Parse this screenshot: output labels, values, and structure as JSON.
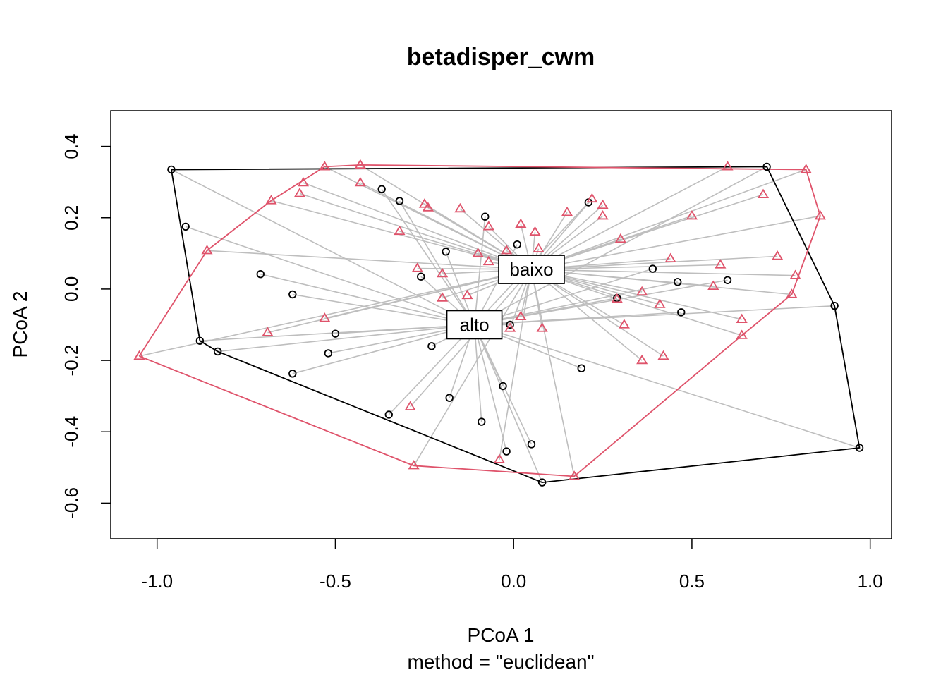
{
  "chart_data": {
    "type": "scatter",
    "title": "betadisper_cwm",
    "xlabel": "PCoA 1",
    "ylabel": "PCoA 2",
    "subtitle": "method = \"euclidean\"",
    "xlim": [
      -1.13,
      1.06
    ],
    "ylim": [
      -0.7,
      0.5
    ],
    "xticks": [
      -1.0,
      -0.5,
      0.0,
      0.5,
      1.0
    ],
    "yticks": [
      -0.6,
      -0.4,
      -0.2,
      0.0,
      0.2,
      0.4
    ],
    "xtick_labels": [
      "-1.0",
      "-0.5",
      "0.0",
      "0.5",
      "1.0"
    ],
    "ytick_labels": [
      "-0.6",
      "-0.4",
      "-0.2",
      "0.0",
      "0.2",
      "0.4"
    ],
    "grid": false,
    "colors": {
      "alto": "#000000",
      "baixo": "#DF536B",
      "segments": "#BEBEBE"
    },
    "series": [
      {
        "name": "alto",
        "marker": "circle",
        "centroid": [
          -0.11,
          -0.1
        ],
        "points": [
          [
            -0.96,
            0.335
          ],
          [
            -0.92,
            0.175
          ],
          [
            -0.88,
            -0.145
          ],
          [
            -0.83,
            -0.175
          ],
          [
            -0.71,
            0.042
          ],
          [
            -0.62,
            -0.015
          ],
          [
            -0.62,
            -0.237
          ],
          [
            -0.5,
            -0.125
          ],
          [
            -0.52,
            -0.18
          ],
          [
            -0.37,
            0.28
          ],
          [
            -0.32,
            0.247
          ],
          [
            -0.26,
            0.035
          ],
          [
            -0.35,
            -0.352
          ],
          [
            -0.23,
            -0.16
          ],
          [
            -0.19,
            0.105
          ],
          [
            -0.18,
            -0.305
          ],
          [
            -0.08,
            0.203
          ],
          [
            -0.09,
            -0.372
          ],
          [
            -0.03,
            -0.272
          ],
          [
            -0.02,
            -0.455
          ],
          [
            0.01,
            0.125
          ],
          [
            -0.01,
            -0.1
          ],
          [
            0.05,
            -0.435
          ],
          [
            0.08,
            -0.542
          ],
          [
            0.19,
            -0.222
          ],
          [
            0.21,
            0.243
          ],
          [
            0.29,
            -0.025
          ],
          [
            0.39,
            0.057
          ],
          [
            0.46,
            0.02
          ],
          [
            0.47,
            -0.065
          ],
          [
            0.6,
            0.025
          ],
          [
            0.71,
            0.343
          ],
          [
            0.9,
            -0.047
          ],
          [
            0.97,
            -0.445
          ]
        ],
        "hull": [
          [
            -0.96,
            0.335
          ],
          [
            0.71,
            0.343
          ],
          [
            0.9,
            -0.047
          ],
          [
            0.97,
            -0.445
          ],
          [
            0.08,
            -0.542
          ],
          [
            -0.83,
            -0.175
          ],
          [
            -0.88,
            -0.145
          ],
          [
            -0.96,
            0.335
          ]
        ]
      },
      {
        "name": "baixo",
        "marker": "triangle",
        "centroid": [
          0.05,
          0.055
        ],
        "points": [
          [
            -1.05,
            -0.188
          ],
          [
            -0.86,
            0.108
          ],
          [
            -0.69,
            -0.122
          ],
          [
            -0.68,
            0.248
          ],
          [
            -0.59,
            0.298
          ],
          [
            -0.6,
            0.268
          ],
          [
            -0.53,
            0.343
          ],
          [
            -0.53,
            -0.082
          ],
          [
            -0.43,
            0.348
          ],
          [
            -0.43,
            0.298
          ],
          [
            -0.32,
            0.162
          ],
          [
            -0.29,
            -0.33
          ],
          [
            -0.28,
            -0.495
          ],
          [
            -0.27,
            0.058
          ],
          [
            -0.25,
            0.238
          ],
          [
            -0.24,
            0.228
          ],
          [
            -0.2,
            0.043
          ],
          [
            -0.2,
            -0.025
          ],
          [
            -0.15,
            0.225
          ],
          [
            -0.13,
            -0.018
          ],
          [
            -0.1,
            0.1
          ],
          [
            -0.07,
            0.175
          ],
          [
            -0.07,
            0.077
          ],
          [
            -0.04,
            -0.478
          ],
          [
            -0.02,
            0.108
          ],
          [
            -0.01,
            -0.11
          ],
          [
            0.02,
            0.182
          ],
          [
            0.02,
            -0.077
          ],
          [
            0.06,
            0.16
          ],
          [
            0.07,
            0.113
          ],
          [
            0.08,
            -0.11
          ],
          [
            0.15,
            0.215
          ],
          [
            0.17,
            -0.525
          ],
          [
            0.22,
            0.253
          ],
          [
            0.25,
            0.235
          ],
          [
            0.25,
            0.205
          ],
          [
            0.29,
            -0.028
          ],
          [
            0.3,
            0.14
          ],
          [
            0.31,
            -0.1
          ],
          [
            0.36,
            -0.008
          ],
          [
            0.36,
            -0.2
          ],
          [
            0.41,
            -0.043
          ],
          [
            0.42,
            -0.188
          ],
          [
            0.44,
            0.085
          ],
          [
            0.5,
            0.205
          ],
          [
            0.56,
            0.008
          ],
          [
            0.58,
            0.068
          ],
          [
            0.6,
            0.343
          ],
          [
            0.64,
            -0.085
          ],
          [
            0.64,
            -0.13
          ],
          [
            0.7,
            0.265
          ],
          [
            0.74,
            0.092
          ],
          [
            0.78,
            -0.015
          ],
          [
            0.79,
            0.038
          ],
          [
            0.82,
            0.335
          ],
          [
            0.86,
            0.205
          ]
        ],
        "hull": [
          [
            -1.05,
            -0.188
          ],
          [
            -0.86,
            0.108
          ],
          [
            -0.68,
            0.248
          ],
          [
            -0.53,
            0.343
          ],
          [
            -0.43,
            0.348
          ],
          [
            0.82,
            0.335
          ],
          [
            0.86,
            0.205
          ],
          [
            0.78,
            -0.015
          ],
          [
            0.64,
            -0.13
          ],
          [
            0.17,
            -0.525
          ],
          [
            -0.28,
            -0.495
          ],
          [
            -1.05,
            -0.188
          ]
        ]
      }
    ]
  }
}
